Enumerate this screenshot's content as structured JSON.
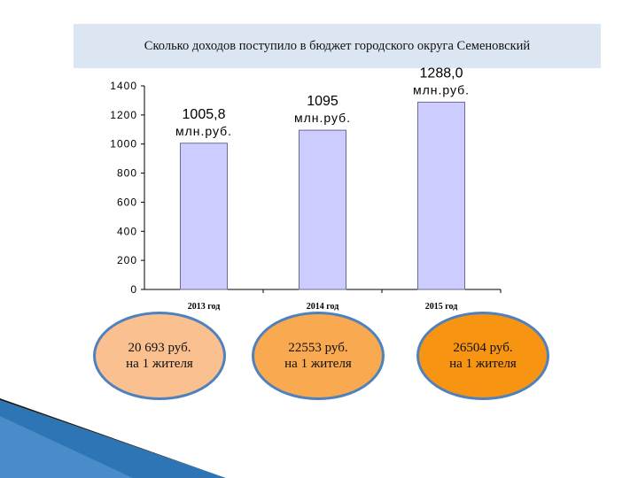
{
  "title": "Сколько доходов поступило в бюджет городского округа Семеновский",
  "colors": {
    "bar": "#ccccff",
    "bar_border": "#6b6b9a",
    "title_bg": "#dce6f2",
    "ellipse_border": "#4f81bd"
  },
  "chart_data": {
    "type": "bar",
    "categories": [
      "2013 год",
      "2014 год",
      "2015 год"
    ],
    "values": [
      1005.8,
      1095,
      1288.0
    ],
    "value_labels": [
      [
        "1005,8",
        "млн.руб."
      ],
      [
        "1095",
        "млн.руб."
      ],
      [
        "1288,0",
        "млн.руб."
      ]
    ],
    "ylim": [
      0,
      1400
    ],
    "yticks": [
      0,
      200,
      400,
      600,
      800,
      1000,
      1200,
      1400
    ],
    "grid": false
  },
  "per_capita": [
    {
      "line1": "20 693 руб.",
      "line2": "на 1 жителя",
      "color": "#fac08f"
    },
    {
      "line1": "22553 руб.",
      "line2": "на 1 жителя",
      "color": "#f9a94f"
    },
    {
      "line1": "26504 руб.",
      "line2": "на 1 жителя",
      "color": "#f79412"
    }
  ]
}
